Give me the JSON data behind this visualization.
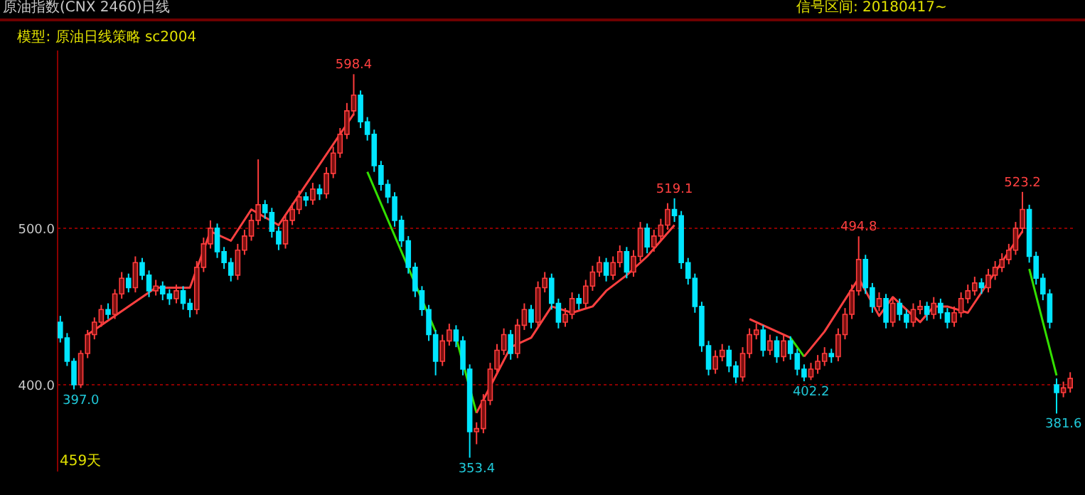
{
  "chart_data": {
    "type": "candlestick",
    "title": "原油指数(CNX 2460)日线",
    "subtitle": "模型: 原油日线策略 sc2004",
    "annotations": [
      "信号区间: 20180417~",
      "459天",
      {
        "text": "397.0",
        "y": 397.0
      },
      {
        "text": "598.4",
        "y": 598.4
      },
      {
        "text": "353.4",
        "y": 353.4
      },
      {
        "text": "519.1",
        "y": 519.1
      },
      {
        "text": "402.2",
        "y": 402.2
      },
      {
        "text": "494.8",
        "y": 494.8
      },
      {
        "text": "523.2",
        "y": 523.2
      },
      {
        "text": "381.6",
        "y": 381.6
      }
    ],
    "categories": [
      null,
      null,
      null,
      null,
      null,
      null,
      null,
      null,
      null,
      null,
      null,
      null,
      null,
      null,
      null,
      null,
      null,
      null,
      null,
      null,
      null,
      null,
      null,
      null,
      null,
      null,
      null,
      null,
      null,
      null,
      null,
      null,
      null,
      null,
      null,
      null,
      null,
      null,
      null,
      null,
      null,
      null,
      null,
      null,
      null,
      null,
      null,
      null,
      null,
      null,
      null,
      null,
      null,
      null,
      null,
      null,
      null,
      null,
      null,
      null,
      null,
      null,
      null,
      null,
      null,
      null,
      null,
      null,
      null,
      null,
      null,
      null,
      null,
      null,
      null,
      null,
      null,
      null,
      null,
      null,
      null,
      null,
      null,
      null,
      null,
      null,
      null,
      null,
      null,
      null,
      null,
      null,
      null,
      null,
      null,
      null,
      null,
      null,
      null,
      null,
      null,
      null,
      null,
      null,
      null,
      null,
      null,
      null,
      null,
      null,
      null,
      null,
      null,
      null,
      null,
      null,
      null,
      null,
      null,
      null,
      null,
      null,
      null,
      null,
      null,
      null,
      null,
      null,
      null,
      null,
      null,
      null,
      null,
      null,
      null,
      null,
      null,
      null,
      null,
      null,
      null,
      null,
      null,
      null,
      null,
      null,
      null,
      null,
      null
    ],
    "ohlc": [
      [
        440,
        444,
        427,
        430
      ],
      [
        430,
        433,
        412,
        415
      ],
      [
        415,
        417,
        397.0,
        400
      ],
      [
        400,
        422,
        398,
        420
      ],
      [
        420,
        435,
        417,
        432
      ],
      [
        432,
        443,
        429,
        440
      ],
      [
        440,
        451,
        437,
        448
      ],
      [
        448,
        452,
        442,
        445
      ],
      [
        445,
        461,
        442,
        458
      ],
      [
        458,
        472,
        455,
        468
      ],
      [
        468,
        471,
        459,
        462
      ],
      [
        462,
        482,
        459,
        478
      ],
      [
        478,
        481,
        467,
        470
      ],
      [
        470,
        473,
        456,
        460
      ],
      [
        460,
        467,
        457,
        463
      ],
      [
        463,
        466,
        454,
        458
      ],
      [
        458,
        461,
        451,
        455
      ],
      [
        455,
        464,
        452,
        460
      ],
      [
        460,
        463,
        448,
        452
      ],
      [
        452,
        455,
        443,
        448
      ],
      [
        448,
        479,
        445,
        475
      ],
      [
        475,
        494,
        472,
        490
      ],
      [
        490,
        505,
        487,
        500
      ],
      [
        500,
        503,
        481,
        485
      ],
      [
        485,
        488,
        474,
        478
      ],
      [
        478,
        481,
        466,
        470
      ],
      [
        470,
        490,
        467,
        486
      ],
      [
        486,
        499,
        483,
        495
      ],
      [
        495,
        509,
        492,
        505
      ],
      [
        505,
        544,
        502,
        515
      ],
      [
        515,
        518,
        506,
        510
      ],
      [
        510,
        513,
        494,
        498
      ],
      [
        498,
        501,
        486,
        490
      ],
      [
        490,
        509,
        487,
        505
      ],
      [
        505,
        516,
        502,
        512
      ],
      [
        512,
        524,
        509,
        520
      ],
      [
        520,
        523,
        514,
        518
      ],
      [
        518,
        529,
        515,
        525
      ],
      [
        525,
        528,
        518,
        522
      ],
      [
        522,
        539,
        519,
        535
      ],
      [
        535,
        552,
        532,
        548
      ],
      [
        548,
        564,
        545,
        560
      ],
      [
        560,
        580,
        557,
        575
      ],
      [
        575,
        598.4,
        572,
        585
      ],
      [
        585,
        588,
        564,
        568
      ],
      [
        568,
        571,
        556,
        560
      ],
      [
        560,
        563,
        536,
        540
      ],
      [
        540,
        543,
        524,
        528
      ],
      [
        528,
        531,
        516,
        520
      ],
      [
        520,
        523,
        501,
        505
      ],
      [
        505,
        508,
        488,
        492
      ],
      [
        492,
        495,
        471,
        475
      ],
      [
        475,
        478,
        456,
        460
      ],
      [
        460,
        463,
        444,
        448
      ],
      [
        448,
        451,
        428,
        432
      ],
      [
        432,
        435,
        406,
        415
      ],
      [
        415,
        432,
        412,
        428
      ],
      [
        428,
        439,
        425,
        435
      ],
      [
        435,
        438,
        424,
        428
      ],
      [
        428,
        431,
        406,
        410
      ],
      [
        410,
        413,
        353.4,
        370
      ],
      [
        370,
        376,
        362,
        372
      ],
      [
        372,
        394,
        369,
        390
      ],
      [
        390,
        414,
        387,
        410
      ],
      [
        410,
        426,
        407,
        422
      ],
      [
        422,
        436,
        419,
        432
      ],
      [
        432,
        435,
        416,
        420
      ],
      [
        420,
        442,
        417,
        438
      ],
      [
        438,
        452,
        435,
        448
      ],
      [
        448,
        451,
        436,
        440
      ],
      [
        440,
        466,
        437,
        462
      ],
      [
        462,
        472,
        459,
        468
      ],
      [
        468,
        471,
        448,
        452
      ],
      [
        452,
        455,
        436,
        440
      ],
      [
        440,
        449,
        437,
        445
      ],
      [
        445,
        459,
        442,
        455
      ],
      [
        455,
        458,
        448,
        452
      ],
      [
        452,
        467,
        449,
        463
      ],
      [
        463,
        476,
        460,
        472
      ],
      [
        472,
        482,
        469,
        478
      ],
      [
        478,
        481,
        466,
        470
      ],
      [
        470,
        482,
        467,
        478
      ],
      [
        478,
        489,
        475,
        485
      ],
      [
        485,
        488,
        468,
        472
      ],
      [
        472,
        486,
        469,
        482
      ],
      [
        482,
        504,
        479,
        500
      ],
      [
        500,
        503,
        484,
        488
      ],
      [
        488,
        499,
        485,
        495
      ],
      [
        495,
        506,
        492,
        502
      ],
      [
        502,
        516,
        499,
        512
      ],
      [
        512,
        519.1,
        504,
        508
      ],
      [
        508,
        511,
        474,
        478
      ],
      [
        478,
        481,
        464,
        468
      ],
      [
        468,
        471,
        446,
        450
      ],
      [
        450,
        453,
        421,
        425
      ],
      [
        425,
        428,
        406,
        410
      ],
      [
        410,
        422,
        407,
        418
      ],
      [
        418,
        426,
        415,
        422
      ],
      [
        422,
        425,
        408,
        412
      ],
      [
        412,
        415,
        401,
        405
      ],
      [
        405,
        424,
        402,
        420
      ],
      [
        420,
        436,
        417,
        432
      ],
      [
        432,
        439,
        429,
        435
      ],
      [
        435,
        438,
        418,
        422
      ],
      [
        422,
        432,
        419,
        428
      ],
      [
        428,
        431,
        414,
        418
      ],
      [
        418,
        432,
        415,
        428
      ],
      [
        428,
        431,
        416,
        420
      ],
      [
        420,
        423,
        406,
        410
      ],
      [
        410,
        413,
        402.2,
        405
      ],
      [
        405,
        414,
        403,
        410
      ],
      [
        410,
        419,
        407,
        415
      ],
      [
        415,
        424,
        412,
        420
      ],
      [
        420,
        423,
        414,
        418
      ],
      [
        418,
        436,
        415,
        432
      ],
      [
        432,
        449,
        429,
        445
      ],
      [
        445,
        464,
        442,
        460
      ],
      [
        460,
        494.8,
        457,
        480
      ],
      [
        480,
        483,
        458,
        462
      ],
      [
        462,
        465,
        446,
        450
      ],
      [
        450,
        459,
        447,
        455
      ],
      [
        455,
        458,
        436,
        440
      ],
      [
        440,
        456,
        437,
        452
      ],
      [
        452,
        455,
        441,
        445
      ],
      [
        445,
        448,
        436,
        440
      ],
      [
        440,
        452,
        437,
        448
      ],
      [
        448,
        454,
        445,
        450
      ],
      [
        450,
        453,
        441,
        445
      ],
      [
        445,
        456,
        442,
        452
      ],
      [
        452,
        455,
        442,
        446
      ],
      [
        446,
        449,
        436,
        440
      ],
      [
        440,
        450,
        437,
        446
      ],
      [
        446,
        459,
        443,
        455
      ],
      [
        455,
        464,
        452,
        460
      ],
      [
        460,
        469,
        457,
        465
      ],
      [
        465,
        468,
        458,
        462
      ],
      [
        462,
        474,
        459,
        470
      ],
      [
        470,
        479,
        467,
        475
      ],
      [
        475,
        484,
        472,
        480
      ],
      [
        480,
        490,
        477,
        486
      ],
      [
        486,
        504,
        483,
        500
      ],
      [
        500,
        523.2,
        497,
        512
      ],
      [
        512,
        515,
        478,
        482
      ],
      [
        482,
        485,
        464,
        468
      ],
      [
        468,
        471,
        454,
        458
      ],
      [
        458,
        461,
        436,
        440
      ],
      [
        400,
        404,
        381.6,
        395
      ],
      [
        395,
        402,
        392,
        398
      ],
      [
        398,
        408,
        395,
        404
      ]
    ],
    "series": [
      {
        "type": "line",
        "color": "#ff4040",
        "values": [
          null,
          null,
          null,
          null,
          432,
          null,
          null,
          null,
          null,
          null,
          null,
          null,
          null,
          null,
          462,
          null,
          null,
          null,
          null,
          462,
          null,
          null,
          498,
          null,
          null,
          492,
          null,
          null,
          512,
          null,
          null,
          null,
          502,
          null,
          null,
          null,
          null,
          null,
          null,
          null,
          null,
          null,
          null,
          573,
          null,
          null,
          null,
          null,
          null,
          null,
          null,
          null,
          null,
          null,
          null,
          null,
          null,
          null,
          null,
          null,
          null,
          null,
          null,
          null,
          null,
          null,
          null,
          null,
          null,
          null,
          null,
          null,
          null,
          null,
          null,
          null,
          null,
          null,
          null,
          null,
          null,
          null,
          null,
          null,
          null,
          null,
          null,
          null,
          null,
          null,
          null,
          null,
          null,
          null,
          null,
          null,
          null,
          null,
          null,
          null,
          null,
          null,
          null,
          null,
          null,
          null,
          null,
          null,
          null,
          null,
          null,
          null,
          null,
          null,
          null,
          null,
          null,
          null,
          null,
          null,
          null,
          null,
          null,
          null,
          null,
          null,
          null,
          null,
          null,
          null,
          null,
          null,
          null,
          null,
          null,
          null,
          null,
          null,
          null,
          null,
          null,
          null,
          null,
          null,
          null,
          null,
          null,
          null,
          null
        ]
      },
      {
        "type": "line",
        "color": "#33e000",
        "values": [
          null,
          null,
          null,
          null,
          null,
          null,
          null,
          null,
          null,
          null,
          null,
          null,
          null,
          null,
          null,
          null,
          null,
          null,
          null,
          null,
          null,
          null,
          null,
          null,
          null,
          null,
          null,
          null,
          null,
          null,
          null,
          null,
          null,
          null,
          null,
          null,
          null,
          null,
          null,
          null,
          null,
          null,
          null,
          null,
          null,
          536,
          null,
          null,
          null,
          null,
          null,
          null,
          null,
          null,
          null,
          434,
          null,
          null,
          null,
          null,
          null,
          null,
          null,
          null,
          null,
          null,
          null,
          null,
          null,
          null,
          null,
          null,
          null,
          null,
          null,
          null,
          null,
          null,
          null,
          null,
          null,
          null,
          null,
          null,
          null,
          null,
          null,
          null,
          null,
          null,
          null,
          null,
          null,
          null,
          null,
          null,
          null,
          null,
          null,
          null,
          null,
          null,
          null,
          null,
          null,
          null,
          null,
          null,
          null,
          null,
          null,
          null,
          null,
          null,
          null,
          null,
          null,
          null,
          null,
          null,
          null,
          null,
          null,
          null,
          null,
          null,
          null,
          null,
          null,
          null,
          null,
          null,
          null,
          null,
          null,
          null,
          null,
          null,
          null,
          null,
          null,
          null,
          null,
          null,
          null,
          null,
          null,
          null,
          null
        ]
      },
      {
        "type": "line",
        "color": "#33e000",
        "values": [
          null,
          null,
          null,
          null,
          null,
          null,
          null,
          null,
          null,
          null,
          null,
          null,
          null,
          null,
          null,
          null,
          null,
          null,
          null,
          null,
          null,
          null,
          null,
          null,
          null,
          null,
          null,
          null,
          null,
          null,
          null,
          null,
          null,
          null,
          null,
          null,
          null,
          null,
          null,
          null,
          null,
          null,
          null,
          null,
          null,
          null,
          null,
          null,
          null,
          null,
          null,
          null,
          null,
          null,
          null,
          null,
          null,
          null,
          430,
          null,
          null,
          382,
          null,
          null,
          null,
          null,
          null,
          null,
          null,
          null,
          null,
          null,
          null,
          null,
          null,
          null,
          null,
          null,
          null,
          null,
          null,
          null,
          null,
          null,
          null,
          null,
          null,
          null,
          null,
          null,
          null,
          null,
          null,
          null,
          null,
          null,
          null,
          null,
          null,
          null,
          null,
          null,
          null,
          null,
          null,
          null,
          null,
          null,
          null,
          null,
          null,
          null,
          null,
          null,
          null,
          null,
          null,
          null,
          null,
          null,
          null,
          null,
          null,
          null,
          null,
          null,
          null,
          null,
          null,
          null,
          null,
          null,
          null,
          null,
          null,
          null,
          null,
          null,
          null,
          null,
          null,
          null,
          null,
          null,
          null,
          null,
          null,
          null,
          null
        ]
      },
      {
        "type": "line",
        "color": "#ff4040",
        "values": [
          null,
          null,
          null,
          null,
          null,
          null,
          null,
          null,
          null,
          null,
          null,
          null,
          null,
          null,
          null,
          null,
          null,
          null,
          null,
          null,
          null,
          null,
          null,
          null,
          null,
          null,
          null,
          null,
          null,
          null,
          null,
          null,
          null,
          null,
          null,
          null,
          null,
          null,
          null,
          null,
          null,
          null,
          null,
          null,
          null,
          null,
          null,
          null,
          null,
          null,
          null,
          null,
          null,
          null,
          null,
          null,
          null,
          null,
          null,
          null,
          null,
          382,
          null,
          null,
          null,
          null,
          424,
          null,
          null,
          430,
          null,
          null,
          450,
          null,
          null,
          446,
          null,
          null,
          450,
          null,
          460,
          null,
          null,
          470,
          null,
          null,
          482,
          null,
          null,
          null,
          502,
          null,
          null,
          null,
          null,
          null,
          null,
          null,
          null,
          null,
          null,
          null,
          null,
          null,
          null,
          null,
          null,
          null,
          null,
          null,
          null,
          null,
          null,
          null,
          null,
          null,
          null,
          null,
          null,
          null,
          null,
          null,
          null,
          null,
          null,
          null,
          null,
          null,
          null,
          null,
          null,
          null,
          null,
          null,
          null,
          null,
          null,
          null,
          null,
          null,
          null,
          null,
          null,
          null,
          null,
          null,
          null,
          null,
          null
        ]
      },
      {
        "type": "line",
        "color": "#ff4040",
        "values": [
          null,
          null,
          null,
          null,
          null,
          null,
          null,
          null,
          null,
          null,
          null,
          null,
          null,
          null,
          null,
          null,
          null,
          null,
          null,
          null,
          null,
          null,
          null,
          null,
          null,
          null,
          null,
          null,
          null,
          null,
          null,
          null,
          null,
          null,
          null,
          null,
          null,
          null,
          null,
          null,
          null,
          null,
          null,
          null,
          null,
          null,
          null,
          null,
          null,
          null,
          null,
          null,
          null,
          null,
          null,
          null,
          null,
          null,
          null,
          null,
          null,
          null,
          null,
          null,
          null,
          null,
          null,
          null,
          null,
          null,
          null,
          null,
          null,
          null,
          null,
          null,
          null,
          null,
          null,
          null,
          null,
          null,
          null,
          null,
          null,
          null,
          null,
          null,
          null,
          null,
          null,
          null,
          null,
          null,
          null,
          null,
          null,
          null,
          null,
          null,
          null,
          442,
          null,
          438,
          null,
          null,
          null,
          430,
          null,
          null,
          null,
          null,
          null,
          null,
          null,
          null,
          null,
          null,
          null,
          null,
          null,
          null,
          null,
          null,
          null,
          null,
          null,
          null,
          null,
          null,
          null,
          null,
          null,
          null,
          null,
          null,
          null,
          null,
          null,
          null,
          null,
          null,
          null,
          null,
          null,
          null,
          null,
          null,
          null
        ]
      },
      {
        "type": "line",
        "color": "#33e000",
        "values": [
          null,
          null,
          null,
          null,
          null,
          null,
          null,
          null,
          null,
          null,
          null,
          null,
          null,
          null,
          null,
          null,
          null,
          null,
          null,
          null,
          null,
          null,
          null,
          null,
          null,
          null,
          null,
          null,
          null,
          null,
          null,
          null,
          null,
          null,
          null,
          null,
          null,
          null,
          null,
          null,
          null,
          null,
          null,
          null,
          null,
          null,
          null,
          null,
          null,
          null,
          null,
          null,
          null,
          null,
          null,
          null,
          null,
          null,
          null,
          null,
          null,
          null,
          null,
          null,
          null,
          null,
          null,
          null,
          null,
          null,
          null,
          null,
          null,
          null,
          null,
          null,
          null,
          null,
          null,
          null,
          null,
          null,
          null,
          null,
          null,
          null,
          null,
          null,
          null,
          null,
          null,
          null,
          null,
          null,
          null,
          null,
          null,
          null,
          null,
          null,
          null,
          null,
          null,
          null,
          null,
          null,
          null,
          430,
          null,
          418,
          null,
          null,
          null,
          null,
          null,
          null,
          null,
          null,
          null,
          null,
          null,
          null,
          null,
          null,
          null,
          null,
          null,
          null,
          null,
          null,
          null,
          null,
          null,
          null,
          null,
          null,
          null,
          null,
          null,
          null,
          null,
          null,
          null,
          null,
          null,
          null,
          null,
          null,
          null
        ]
      },
      {
        "type": "line",
        "color": "#ff4040",
        "values": [
          null,
          null,
          null,
          null,
          null,
          null,
          null,
          null,
          null,
          null,
          null,
          null,
          null,
          null,
          null,
          null,
          null,
          null,
          null,
          null,
          null,
          null,
          null,
          null,
          null,
          null,
          null,
          null,
          null,
          null,
          null,
          null,
          null,
          null,
          null,
          null,
          null,
          null,
          null,
          null,
          null,
          null,
          null,
          null,
          null,
          null,
          null,
          null,
          null,
          null,
          null,
          null,
          null,
          null,
          null,
          null,
          null,
          null,
          null,
          null,
          null,
          null,
          null,
          null,
          null,
          null,
          null,
          null,
          null,
          null,
          null,
          null,
          null,
          null,
          null,
          null,
          null,
          null,
          null,
          null,
          null,
          null,
          null,
          null,
          null,
          null,
          null,
          null,
          null,
          null,
          null,
          null,
          null,
          null,
          null,
          null,
          null,
          null,
          null,
          null,
          null,
          null,
          null,
          null,
          null,
          null,
          null,
          null,
          null,
          418,
          null,
          null,
          434,
          null,
          null,
          null,
          null,
          468,
          null,
          null,
          444,
          null,
          456,
          null,
          null,
          null,
          440,
          null,
          450,
          null,
          450,
          null,
          null,
          446,
          null,
          null,
          null,
          null,
          null,
          null,
          null,
          498,
          null,
          null,
          null,
          null,
          null,
          null,
          null
        ]
      },
      {
        "type": "line",
        "color": "#33e000",
        "values": [
          null,
          null,
          null,
          null,
          null,
          null,
          null,
          null,
          null,
          null,
          null,
          null,
          null,
          null,
          null,
          null,
          null,
          null,
          null,
          null,
          null,
          null,
          null,
          null,
          null,
          null,
          null,
          null,
          null,
          null,
          null,
          null,
          null,
          null,
          null,
          null,
          null,
          null,
          null,
          null,
          null,
          null,
          null,
          null,
          null,
          null,
          null,
          null,
          null,
          null,
          null,
          null,
          null,
          null,
          null,
          null,
          null,
          null,
          null,
          null,
          null,
          null,
          null,
          null,
          null,
          null,
          null,
          null,
          null,
          null,
          null,
          null,
          null,
          null,
          null,
          null,
          null,
          null,
          null,
          null,
          null,
          null,
          null,
          null,
          null,
          null,
          null,
          null,
          null,
          null,
          null,
          null,
          null,
          null,
          null,
          null,
          null,
          null,
          null,
          null,
          null,
          null,
          null,
          null,
          null,
          null,
          null,
          null,
          null,
          null,
          null,
          null,
          null,
          null,
          null,
          null,
          null,
          null,
          null,
          null,
          null,
          null,
          null,
          null,
          null,
          null,
          null,
          null,
          null,
          null,
          null,
          null,
          null,
          null,
          null,
          null,
          null,
          null,
          null,
          null,
          null,
          null,
          474,
          null,
          null,
          null,
          406,
          null,
          null
        ]
      }
    ],
    "ylim": [
      345,
      614
    ],
    "yticks": [
      {
        "value": 400,
        "label": "400.0"
      },
      {
        "value": 500,
        "label": "500.0"
      }
    ],
    "grid": "y",
    "tick_labels": "y"
  }
}
